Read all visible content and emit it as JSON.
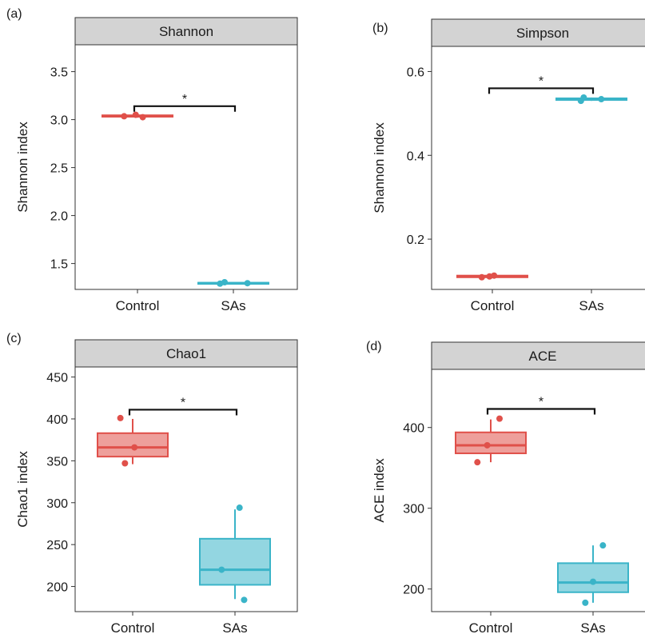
{
  "chart_data": [
    {
      "panel_label": "(a)",
      "title": "Shannon",
      "type": "box",
      "ylabel": "Shannon index",
      "ylim": [
        1.23,
        3.78
      ],
      "yticks": [
        1.5,
        2.0,
        2.5,
        3.0,
        3.5
      ],
      "ytick_labels": [
        "1.5",
        "2.0",
        "2.5",
        "3.0",
        "3.5"
      ],
      "categories": [
        "Control",
        "SAs"
      ],
      "colors": [
        "#e0504a",
        "#3ab4c8"
      ],
      "boxes": [
        {
          "q1": 3.03,
          "median": 3.035,
          "q3": 3.045,
          "whisker_low": 3.02,
          "whisker_high": 3.05
        },
        {
          "q1": 1.29,
          "median": 1.295,
          "q3": 1.3,
          "whisker_low": 1.29,
          "whisker_high": 1.305
        }
      ],
      "points": [
        [
          {
            "x": -0.38,
            "y": 3.035
          },
          {
            "x": -0.05,
            "y": 3.05
          },
          {
            "x": 0.15,
            "y": 3.025
          }
        ],
        [
          {
            "x": -0.38,
            "y": 1.29
          },
          {
            "x": -0.25,
            "y": 1.305
          },
          {
            "x": 0.4,
            "y": 1.295
          }
        ]
      ],
      "significance": {
        "label": "*",
        "y": 3.14
      }
    },
    {
      "panel_label": "(b)",
      "title": "Simpson",
      "type": "box",
      "ylabel": "Shannon index",
      "ylim": [
        0.08,
        0.66
      ],
      "yticks": [
        0.2,
        0.4,
        0.6
      ],
      "ytick_labels": [
        "0.2",
        "0.4",
        "0.6"
      ],
      "categories": [
        "Control",
        "SAs"
      ],
      "colors": [
        "#e0504a",
        "#3ab4c8"
      ],
      "boxes": [
        {
          "q1": 0.109,
          "median": 0.111,
          "q3": 0.113,
          "whisker_low": 0.108,
          "whisker_high": 0.114
        },
        {
          "q1": 0.532,
          "median": 0.534,
          "q3": 0.536,
          "whisker_low": 0.53,
          "whisker_high": 0.538
        }
      ],
      "points": [
        [
          {
            "x": -0.3,
            "y": 0.109
          },
          {
            "x": -0.08,
            "y": 0.111
          },
          {
            "x": 0.05,
            "y": 0.113
          }
        ],
        [
          {
            "x": -0.3,
            "y": 0.53
          },
          {
            "x": -0.22,
            "y": 0.538
          },
          {
            "x": 0.28,
            "y": 0.534
          }
        ]
      ],
      "significance": {
        "label": "*",
        "y": 0.56
      }
    },
    {
      "panel_label": "(c)",
      "title": "Chao1",
      "type": "box",
      "ylabel": "Chao1 index",
      "ylim": [
        170,
        462
      ],
      "yticks": [
        200,
        250,
        300,
        350,
        400,
        450
      ],
      "ytick_labels": [
        "200",
        "250",
        "300",
        "350",
        "400",
        "450"
      ],
      "categories": [
        "Control",
        "SAs"
      ],
      "colors": [
        "#e0504a",
        "#3ab4c8"
      ],
      "boxes": [
        {
          "q1": 355,
          "median": 366,
          "q3": 383,
          "whisker_low": 346,
          "whisker_high": 400
        },
        {
          "q1": 202,
          "median": 220,
          "q3": 257,
          "whisker_low": 185,
          "whisker_high": 292
        }
      ],
      "points": [
        [
          {
            "x": -0.35,
            "y": 401
          },
          {
            "x": -0.22,
            "y": 347
          },
          {
            "x": 0.05,
            "y": 366
          }
        ],
        [
          {
            "x": -0.38,
            "y": 220
          },
          {
            "x": 0.13,
            "y": 294
          },
          {
            "x": 0.26,
            "y": 184
          }
        ]
      ],
      "significance": {
        "label": "*",
        "y": 411
      }
    },
    {
      "panel_label": "(d)",
      "title": "ACE",
      "type": "box",
      "ylabel": "ACE index",
      "ylim": [
        172,
        472
      ],
      "yticks": [
        200,
        300,
        400
      ],
      "ytick_labels": [
        "200",
        "300",
        "400"
      ],
      "categories": [
        "Control",
        "SAs"
      ],
      "colors": [
        "#e0504a",
        "#3ab4c8"
      ],
      "boxes": [
        {
          "q1": 368,
          "median": 378,
          "q3": 394,
          "whisker_low": 357,
          "whisker_high": 410
        },
        {
          "q1": 196,
          "median": 208,
          "q3": 232,
          "whisker_low": 183,
          "whisker_high": 254
        }
      ],
      "points": [
        [
          {
            "x": -0.38,
            "y": 357
          },
          {
            "x": -0.1,
            "y": 378
          },
          {
            "x": 0.25,
            "y": 411
          }
        ],
        [
          {
            "x": -0.22,
            "y": 183
          },
          {
            "x": 0.0,
            "y": 209
          },
          {
            "x": 0.28,
            "y": 254
          }
        ]
      ],
      "significance": {
        "label": "*",
        "y": 423
      }
    }
  ]
}
